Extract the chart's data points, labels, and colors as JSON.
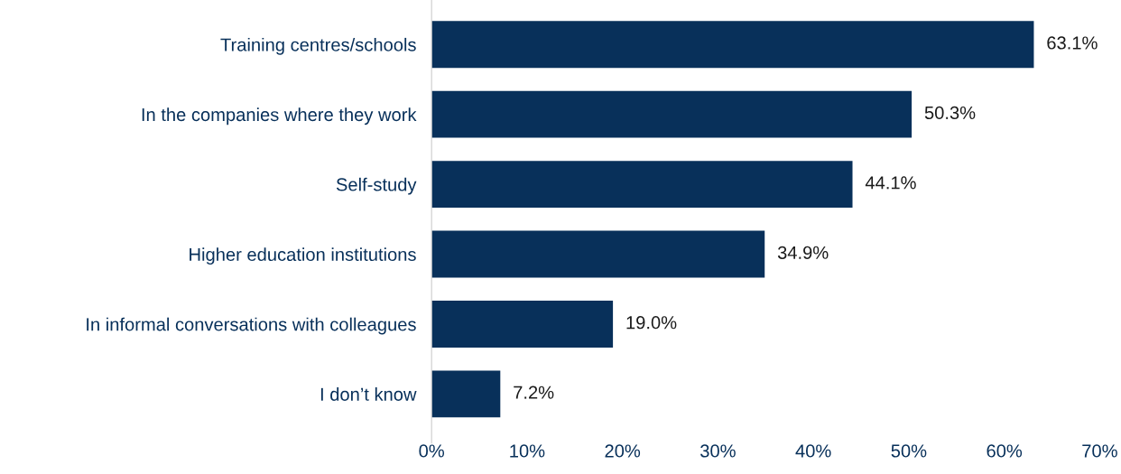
{
  "chart_data": {
    "type": "bar",
    "orientation": "horizontal",
    "categories": [
      "Training centres/schools",
      "In the companies where they work",
      "Self-study",
      "Higher education institutions",
      "In informal conversations with colleagues",
      "I don’t know"
    ],
    "values": [
      63.1,
      50.3,
      44.1,
      34.9,
      19.0,
      7.2
    ],
    "value_labels": [
      "63.1%",
      "50.3%",
      "44.1%",
      "34.9%",
      "19.0%",
      "7.2%"
    ],
    "color": "#08305a",
    "xlim": [
      0,
      70
    ],
    "xticks": [
      {
        "value": 0,
        "label": "0%"
      },
      {
        "value": 10,
        "label": "10%"
      },
      {
        "value": 20,
        "label": "20%"
      },
      {
        "value": 30,
        "label": "30%"
      },
      {
        "value": 40,
        "label": "40%"
      },
      {
        "value": 50,
        "label": "50%"
      },
      {
        "value": 60,
        "label": "60%"
      },
      {
        "value": 70,
        "label": "70%"
      }
    ],
    "grid": false,
    "legend": false
  }
}
